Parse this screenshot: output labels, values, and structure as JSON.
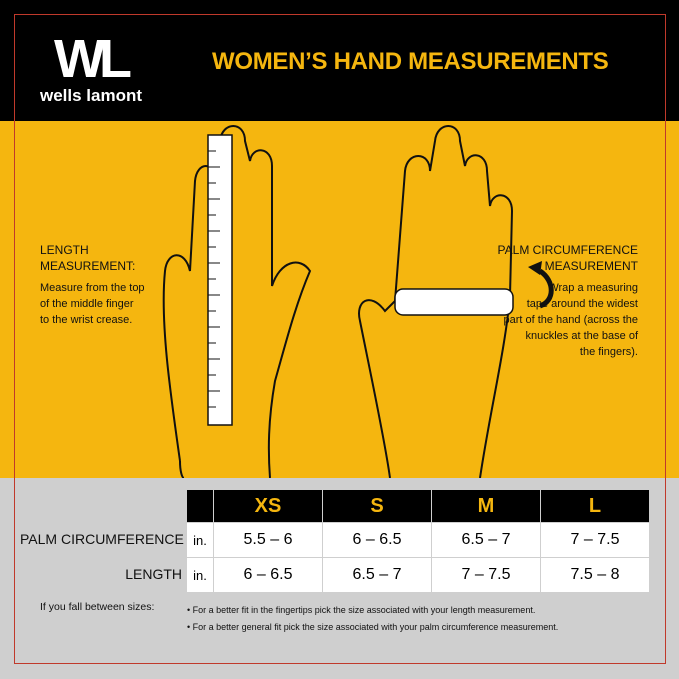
{
  "brand": {
    "logo_letters": "WL",
    "name": "wells lamont"
  },
  "title": "WOMEN’S HAND MEASUREMENTS",
  "colors": {
    "accent": "#f5b60f",
    "header_bg": "#000000",
    "frame": "#c0392b",
    "bottom_bg": "#cfcfcf"
  },
  "length": {
    "heading1": "LENGTH",
    "heading2": "MEASUREMENT:",
    "lines": [
      "Measure from the top",
      "of the middle finger",
      "to the wrist crease."
    ]
  },
  "palm": {
    "heading1": "PALM CIRCUMFERENCE",
    "heading2": "MEASUREMENT",
    "lines": [
      "Wrap a measuring",
      "tape around the widest",
      "part of the hand (across the",
      "knuckles at the base of",
      "the fingers)."
    ]
  },
  "table": {
    "sizes": [
      "XS",
      "S",
      "M",
      "L"
    ],
    "rows": [
      {
        "label": "PALM CIRCUMFERENCE",
        "unit": "in.",
        "values": [
          "5.5 – 6",
          "6 – 6.5",
          "6.5 – 7",
          "7 – 7.5"
        ]
      },
      {
        "label": "LENGTH",
        "unit": "in.",
        "values": [
          "6 – 6.5",
          "6.5 – 7",
          "7 – 7.5",
          "7.5 – 8"
        ]
      }
    ]
  },
  "notes": {
    "label": "If you fall between sizes:",
    "bullets": [
      "• For a better fit in the fingertips pick the size associated with your length measurement.",
      "• For a better general fit pick the size associated with your palm circumference measurement."
    ]
  }
}
